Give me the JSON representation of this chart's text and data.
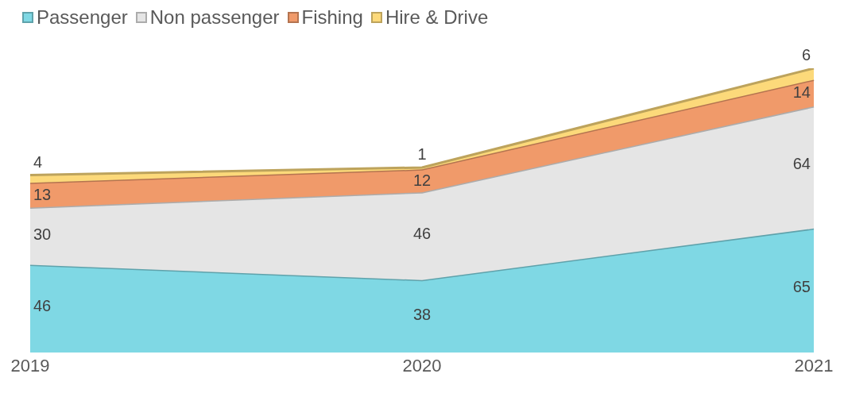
{
  "chart_data": {
    "type": "area",
    "categories": [
      "2019",
      "2020",
      "2021"
    ],
    "stacked": true,
    "data_labels": true,
    "legend": "top left",
    "grid": false,
    "series": [
      {
        "name": "Passenger",
        "color": "#7fd8e4",
        "values": [
          46,
          38,
          65
        ]
      },
      {
        "name": "Non passenger",
        "color": "#e5e5e5",
        "values": [
          30,
          46,
          64
        ]
      },
      {
        "name": "Fishing",
        "color": "#f09a6a",
        "values": [
          13,
          12,
          14
        ]
      },
      {
        "name": "Hire & Drive",
        "color": "#fcd97a",
        "values": [
          4,
          1,
          6
        ]
      }
    ]
  }
}
